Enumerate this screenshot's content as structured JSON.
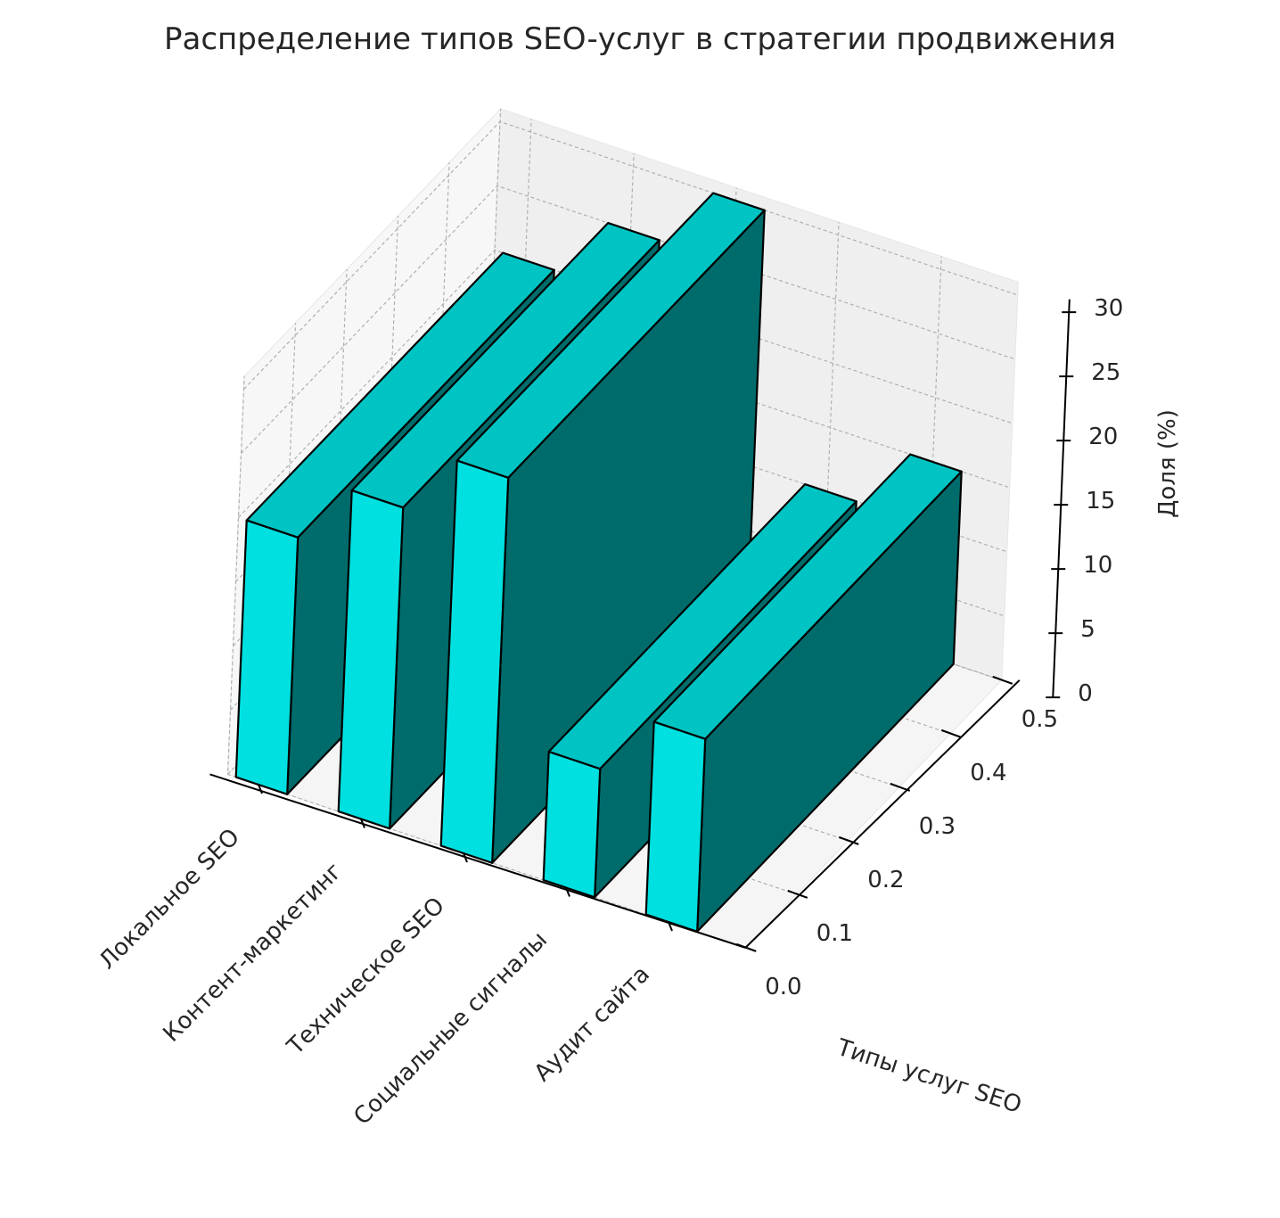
{
  "chart_data": {
    "type": "bar3d",
    "title": "Распределение типов SEO-услуг в стратегии продвижения",
    "xlabel": "Типы услуг SEO",
    "ylabel": "",
    "zlabel": "Доля (%)",
    "categories": [
      "Локальное SEO",
      "Контент-маркетинг",
      "Техническое SEO",
      "Социальные сигналы",
      "Аудит сайта"
    ],
    "values": [
      20,
      25,
      30,
      10,
      15
    ],
    "y_ticks": [
      "0.0",
      "0.1",
      "0.2",
      "0.3",
      "0.4",
      "0.5"
    ],
    "z_ticks": [
      "0",
      "5",
      "10",
      "15",
      "20",
      "25",
      "30"
    ],
    "zlim": [
      0,
      31
    ],
    "ylim": [
      0,
      0.5
    ],
    "grid": true,
    "colors": {
      "front": "#00e0e0",
      "top": "#00c4c4",
      "side": "#006b6b",
      "edge": "#000000"
    }
  }
}
